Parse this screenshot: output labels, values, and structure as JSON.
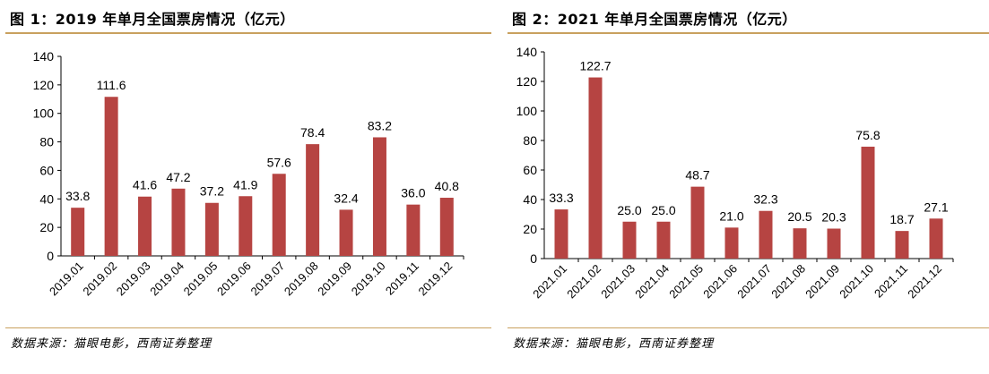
{
  "panels": [
    {
      "title": "图 1：2019 年单月全国票房情况（亿元）",
      "source": "数据来源：猫眼电影，西南证券整理"
    },
    {
      "title": "图 2：2021 年单月全国票房情况（亿元）",
      "source": "数据来源：猫眼电影，西南证券整理"
    }
  ],
  "chart_data": [
    {
      "type": "bar",
      "title": "图 1：2019 年单月全国票房情况（亿元）",
      "xlabel": "",
      "ylabel": "",
      "categories": [
        "2019.01",
        "2019.02",
        "2019.03",
        "2019.04",
        "2019.05",
        "2019.06",
        "2019.07",
        "2019.08",
        "2019.09",
        "2019.10",
        "2019.11",
        "2019.12"
      ],
      "values": [
        33.8,
        111.6,
        41.6,
        47.2,
        37.2,
        41.9,
        57.6,
        78.4,
        32.4,
        83.2,
        36.0,
        40.8
      ],
      "value_labels": [
        "33.8",
        "111.6",
        "41.6",
        "47.2",
        "37.2",
        "41.9",
        "57.6",
        "78.4",
        "32.4",
        "83.2",
        "36.0",
        "40.8"
      ],
      "ylim": [
        0,
        140
      ],
      "yticks": [
        0,
        20,
        40,
        60,
        80,
        100,
        120,
        140
      ],
      "grid": false,
      "bar_color": "#b64442"
    },
    {
      "type": "bar",
      "title": "图 2：2021 年单月全国票房情况（亿元）",
      "xlabel": "",
      "ylabel": "",
      "categories": [
        "2021.01",
        "2021.02",
        "2021.03",
        "2021.04",
        "2021.05",
        "2021.06",
        "2021.07",
        "2021.08",
        "2021.09",
        "2021.10",
        "2021.11",
        "2021.12"
      ],
      "values": [
        33.3,
        122.7,
        25.0,
        25.0,
        48.7,
        21.0,
        32.3,
        20.5,
        20.3,
        75.8,
        18.7,
        27.1
      ],
      "value_labels": [
        "33.3",
        "122.7",
        "25.0",
        "25.0",
        "48.7",
        "21.0",
        "32.3",
        "20.5",
        "20.3",
        "75.8",
        "18.7",
        "27.1"
      ],
      "ylim": [
        0,
        140
      ],
      "yticks": [
        0,
        20,
        40,
        60,
        80,
        100,
        120,
        140
      ],
      "grid": false,
      "bar_color": "#b64442"
    }
  ]
}
